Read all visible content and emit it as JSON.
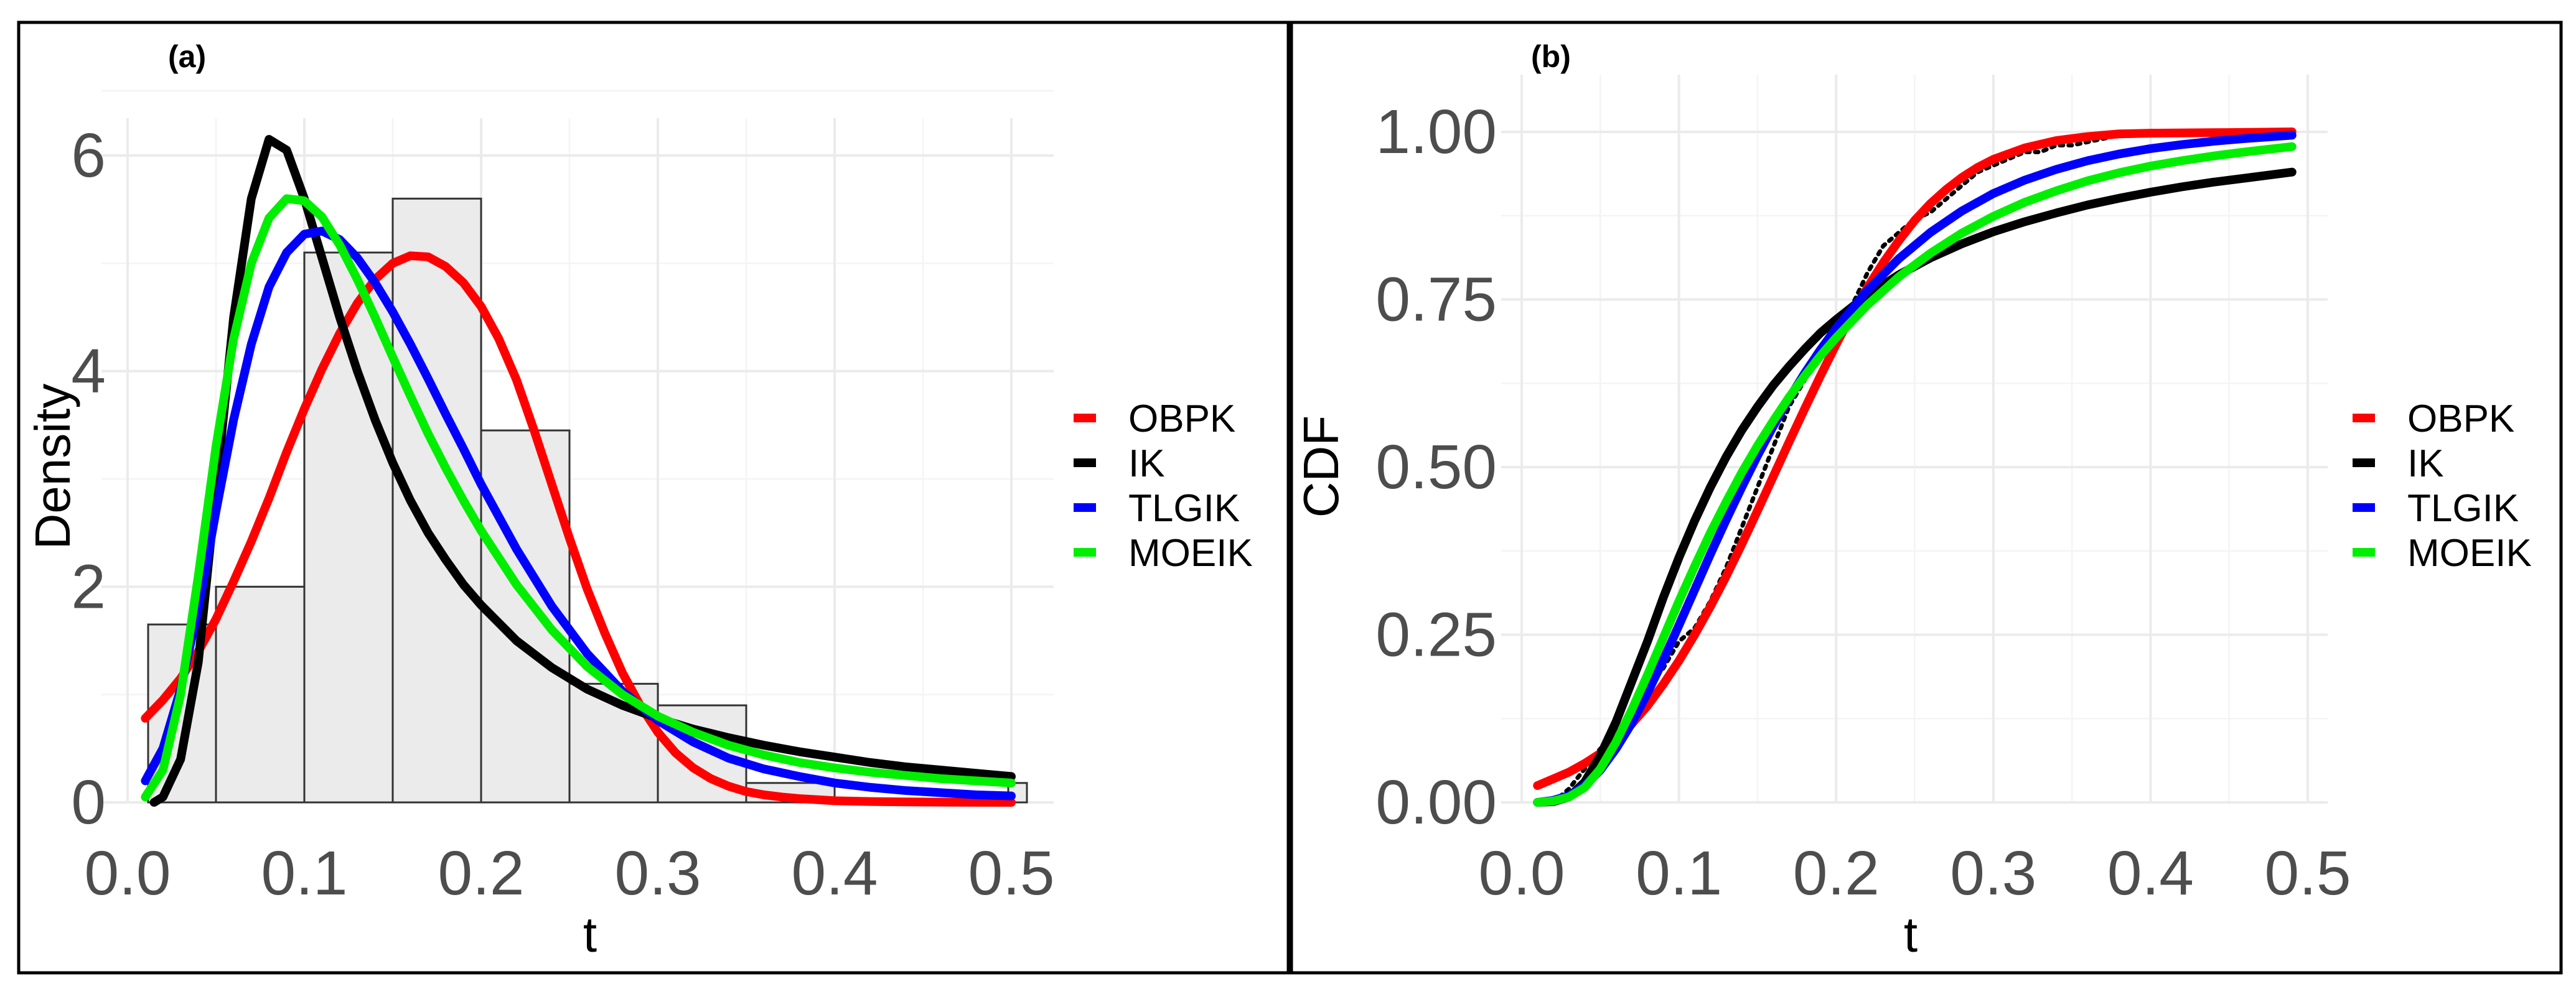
{
  "chart_data": [
    {
      "type": "histogram+line",
      "panel_label": "(a)",
      "title": "",
      "xlabel": "t",
      "ylabel": "Density",
      "xlim": [
        0.0,
        0.5
      ],
      "ylim": [
        0,
        6.2
      ],
      "xticks": [
        0.0,
        0.1,
        0.2,
        0.3,
        0.4,
        0.5
      ],
      "xtick_labels": [
        "0.0",
        "0.1",
        "0.2",
        "0.3",
        "0.4",
        "0.5"
      ],
      "yticks": [
        0,
        2,
        4,
        6
      ],
      "ytick_labels": [
        "0",
        "2",
        "4",
        "6"
      ],
      "grid": true,
      "legend_position": "right",
      "histogram": {
        "bin_edges": [
          0.0,
          0.05,
          0.1,
          0.15,
          0.2,
          0.25,
          0.3,
          0.35,
          0.4,
          0.45,
          0.5
        ],
        "values": [
          1.65,
          2.0,
          5.1,
          5.6,
          3.45,
          1.1,
          0.9,
          0.18,
          0.0,
          0.0
        ]
      },
      "series": [
        {
          "name": "OBPK",
          "color": "#ff0000",
          "x": [
            0.01,
            0.02,
            0.03,
            0.04,
            0.05,
            0.06,
            0.07,
            0.08,
            0.09,
            0.1,
            0.11,
            0.12,
            0.13,
            0.14,
            0.15,
            0.16,
            0.17,
            0.18,
            0.19,
            0.2,
            0.21,
            0.22,
            0.23,
            0.24,
            0.25,
            0.26,
            0.27,
            0.28,
            0.29,
            0.3,
            0.31,
            0.32,
            0.33,
            0.34,
            0.35,
            0.36,
            0.37,
            0.38,
            0.39,
            0.4,
            0.42,
            0.44,
            0.46,
            0.48,
            0.5
          ],
          "y": [
            0.78,
            0.95,
            1.15,
            1.4,
            1.7,
            2.05,
            2.42,
            2.82,
            3.25,
            3.65,
            4.02,
            4.35,
            4.63,
            4.85,
            5.0,
            5.07,
            5.06,
            4.97,
            4.82,
            4.6,
            4.3,
            3.92,
            3.45,
            2.95,
            2.45,
            1.98,
            1.57,
            1.2,
            0.9,
            0.65,
            0.46,
            0.32,
            0.22,
            0.15,
            0.1,
            0.07,
            0.05,
            0.035,
            0.025,
            0.015,
            0.008,
            0.004,
            0.002,
            0.001,
            0.0
          ]
        },
        {
          "name": "IK",
          "color": "#000000",
          "x": [
            0.015,
            0.02,
            0.03,
            0.04,
            0.05,
            0.06,
            0.07,
            0.08,
            0.09,
            0.1,
            0.11,
            0.12,
            0.13,
            0.14,
            0.15,
            0.16,
            0.17,
            0.18,
            0.19,
            0.2,
            0.22,
            0.24,
            0.26,
            0.28,
            0.3,
            0.32,
            0.34,
            0.36,
            0.38,
            0.4,
            0.42,
            0.44,
            0.46,
            0.48,
            0.5
          ],
          "y": [
            0.0,
            0.05,
            0.4,
            1.3,
            2.9,
            4.5,
            5.6,
            6.15,
            6.05,
            5.6,
            5.05,
            4.5,
            4.0,
            3.55,
            3.15,
            2.8,
            2.5,
            2.25,
            2.02,
            1.83,
            1.5,
            1.25,
            1.05,
            0.9,
            0.78,
            0.68,
            0.6,
            0.53,
            0.47,
            0.42,
            0.37,
            0.33,
            0.3,
            0.27,
            0.24
          ]
        },
        {
          "name": "TLGIK",
          "color": "#0000ff",
          "x": [
            0.01,
            0.02,
            0.03,
            0.04,
            0.05,
            0.06,
            0.07,
            0.08,
            0.09,
            0.1,
            0.11,
            0.12,
            0.13,
            0.14,
            0.15,
            0.16,
            0.17,
            0.18,
            0.19,
            0.2,
            0.22,
            0.24,
            0.26,
            0.28,
            0.3,
            0.32,
            0.34,
            0.36,
            0.38,
            0.4,
            0.42,
            0.44,
            0.46,
            0.48,
            0.5
          ],
          "y": [
            0.2,
            0.5,
            1.05,
            1.8,
            2.7,
            3.55,
            4.25,
            4.78,
            5.1,
            5.27,
            5.3,
            5.22,
            5.05,
            4.82,
            4.55,
            4.25,
            3.93,
            3.6,
            3.28,
            2.95,
            2.35,
            1.82,
            1.38,
            1.03,
            0.76,
            0.56,
            0.41,
            0.31,
            0.24,
            0.18,
            0.14,
            0.11,
            0.09,
            0.07,
            0.06
          ]
        },
        {
          "name": "MOEIK",
          "color": "#00ee00",
          "x": [
            0.01,
            0.02,
            0.03,
            0.04,
            0.05,
            0.06,
            0.07,
            0.08,
            0.09,
            0.1,
            0.11,
            0.12,
            0.13,
            0.14,
            0.15,
            0.16,
            0.17,
            0.18,
            0.19,
            0.2,
            0.22,
            0.24,
            0.26,
            0.28,
            0.3,
            0.32,
            0.34,
            0.36,
            0.38,
            0.4,
            0.42,
            0.44,
            0.46,
            0.48,
            0.5
          ],
          "y": [
            0.05,
            0.3,
            1.0,
            2.1,
            3.3,
            4.3,
            5.0,
            5.42,
            5.6,
            5.58,
            5.43,
            5.17,
            4.85,
            4.5,
            4.13,
            3.77,
            3.42,
            3.1,
            2.8,
            2.52,
            2.02,
            1.6,
            1.26,
            1.0,
            0.8,
            0.65,
            0.53,
            0.44,
            0.37,
            0.32,
            0.28,
            0.25,
            0.22,
            0.2,
            0.18
          ]
        }
      ]
    },
    {
      "type": "line",
      "panel_label": "(b)",
      "title": "",
      "xlabel": "t",
      "ylabel": "CDF",
      "xlim": [
        0.0,
        0.5
      ],
      "ylim": [
        0.0,
        1.0
      ],
      "xticks": [
        0.0,
        0.1,
        0.2,
        0.3,
        0.4,
        0.5
      ],
      "xtick_labels": [
        "0.0",
        "0.1",
        "0.2",
        "0.3",
        "0.4",
        "0.5"
      ],
      "yticks": [
        0.0,
        0.25,
        0.5,
        0.75,
        1.0
      ],
      "ytick_labels": [
        "0.00",
        "0.25",
        "0.50",
        "0.75",
        "1.00"
      ],
      "grid": true,
      "legend_position": "right",
      "empirical": {
        "name": "empirical CDF (dotted)",
        "color": "#000000",
        "x": [
          0.02,
          0.03,
          0.04,
          0.05,
          0.06,
          0.07,
          0.08,
          0.09,
          0.1,
          0.11,
          0.12,
          0.13,
          0.14,
          0.15,
          0.16,
          0.17,
          0.18,
          0.19,
          0.2,
          0.21,
          0.22,
          0.23,
          0.24,
          0.25,
          0.26,
          0.27,
          0.28,
          0.29,
          0.3,
          0.31,
          0.32,
          0.33,
          0.34,
          0.35,
          0.37,
          0.39
        ],
        "y": [
          0.0,
          0.02,
          0.05,
          0.08,
          0.1,
          0.14,
          0.17,
          0.2,
          0.24,
          0.26,
          0.3,
          0.35,
          0.41,
          0.47,
          0.53,
          0.59,
          0.63,
          0.67,
          0.7,
          0.74,
          0.79,
          0.83,
          0.85,
          0.87,
          0.88,
          0.9,
          0.92,
          0.94,
          0.95,
          0.96,
          0.97,
          0.97,
          0.98,
          0.98,
          0.99,
          1.0
        ]
      },
      "series": [
        {
          "name": "OBPK",
          "color": "#ff0000",
          "x": [
            0.01,
            0.02,
            0.03,
            0.04,
            0.05,
            0.06,
            0.07,
            0.08,
            0.09,
            0.1,
            0.11,
            0.12,
            0.13,
            0.14,
            0.15,
            0.16,
            0.17,
            0.18,
            0.19,
            0.2,
            0.21,
            0.22,
            0.23,
            0.24,
            0.25,
            0.26,
            0.27,
            0.28,
            0.29,
            0.3,
            0.32,
            0.34,
            0.36,
            0.38,
            0.4,
            0.45,
            0.49
          ],
          "y": [
            0.025,
            0.035,
            0.045,
            0.058,
            0.073,
            0.093,
            0.117,
            0.144,
            0.176,
            0.211,
            0.25,
            0.292,
            0.337,
            0.385,
            0.435,
            0.486,
            0.537,
            0.587,
            0.636,
            0.683,
            0.728,
            0.768,
            0.805,
            0.838,
            0.868,
            0.893,
            0.914,
            0.932,
            0.947,
            0.959,
            0.976,
            0.987,
            0.993,
            0.997,
            0.998,
            0.999,
            1.0
          ]
        },
        {
          "name": "IK",
          "color": "#000000",
          "x": [
            0.01,
            0.02,
            0.03,
            0.04,
            0.05,
            0.06,
            0.07,
            0.08,
            0.09,
            0.1,
            0.11,
            0.12,
            0.13,
            0.14,
            0.15,
            0.16,
            0.17,
            0.18,
            0.19,
            0.2,
            0.22,
            0.24,
            0.26,
            0.28,
            0.3,
            0.32,
            0.34,
            0.36,
            0.38,
            0.4,
            0.42,
            0.44,
            0.46,
            0.49
          ],
          "y": [
            0.0,
            0.001,
            0.008,
            0.03,
            0.07,
            0.12,
            0.18,
            0.24,
            0.305,
            0.365,
            0.42,
            0.47,
            0.515,
            0.555,
            0.59,
            0.622,
            0.65,
            0.676,
            0.7,
            0.72,
            0.757,
            0.787,
            0.812,
            0.833,
            0.851,
            0.866,
            0.879,
            0.891,
            0.901,
            0.91,
            0.918,
            0.925,
            0.931,
            0.94
          ]
        },
        {
          "name": "TLGIK",
          "color": "#0000ff",
          "x": [
            0.01,
            0.02,
            0.03,
            0.04,
            0.05,
            0.06,
            0.07,
            0.08,
            0.09,
            0.1,
            0.11,
            0.12,
            0.13,
            0.14,
            0.15,
            0.16,
            0.17,
            0.18,
            0.19,
            0.2,
            0.22,
            0.24,
            0.26,
            0.28,
            0.3,
            0.32,
            0.34,
            0.36,
            0.38,
            0.4,
            0.42,
            0.44,
            0.46,
            0.49
          ],
          "y": [
            0.0,
            0.003,
            0.01,
            0.025,
            0.048,
            0.08,
            0.118,
            0.163,
            0.212,
            0.264,
            0.317,
            0.37,
            0.421,
            0.47,
            0.517,
            0.561,
            0.602,
            0.64,
            0.675,
            0.707,
            0.764,
            0.811,
            0.85,
            0.882,
            0.908,
            0.928,
            0.944,
            0.957,
            0.967,
            0.975,
            0.981,
            0.986,
            0.99,
            0.995
          ]
        },
        {
          "name": "MOEIK",
          "color": "#00ee00",
          "x": [
            0.01,
            0.02,
            0.03,
            0.04,
            0.05,
            0.06,
            0.07,
            0.08,
            0.09,
            0.1,
            0.11,
            0.12,
            0.13,
            0.14,
            0.15,
            0.16,
            0.17,
            0.18,
            0.19,
            0.2,
            0.22,
            0.24,
            0.26,
            0.28,
            0.3,
            0.32,
            0.34,
            0.36,
            0.38,
            0.4,
            0.42,
            0.44,
            0.46,
            0.49
          ],
          "y": [
            0.0,
            0.002,
            0.008,
            0.022,
            0.05,
            0.09,
            0.138,
            0.19,
            0.245,
            0.3,
            0.352,
            0.402,
            0.448,
            0.492,
            0.532,
            0.569,
            0.604,
            0.636,
            0.666,
            0.693,
            0.742,
            0.784,
            0.819,
            0.849,
            0.874,
            0.895,
            0.912,
            0.927,
            0.939,
            0.949,
            0.957,
            0.964,
            0.97,
            0.978
          ]
        }
      ]
    }
  ]
}
